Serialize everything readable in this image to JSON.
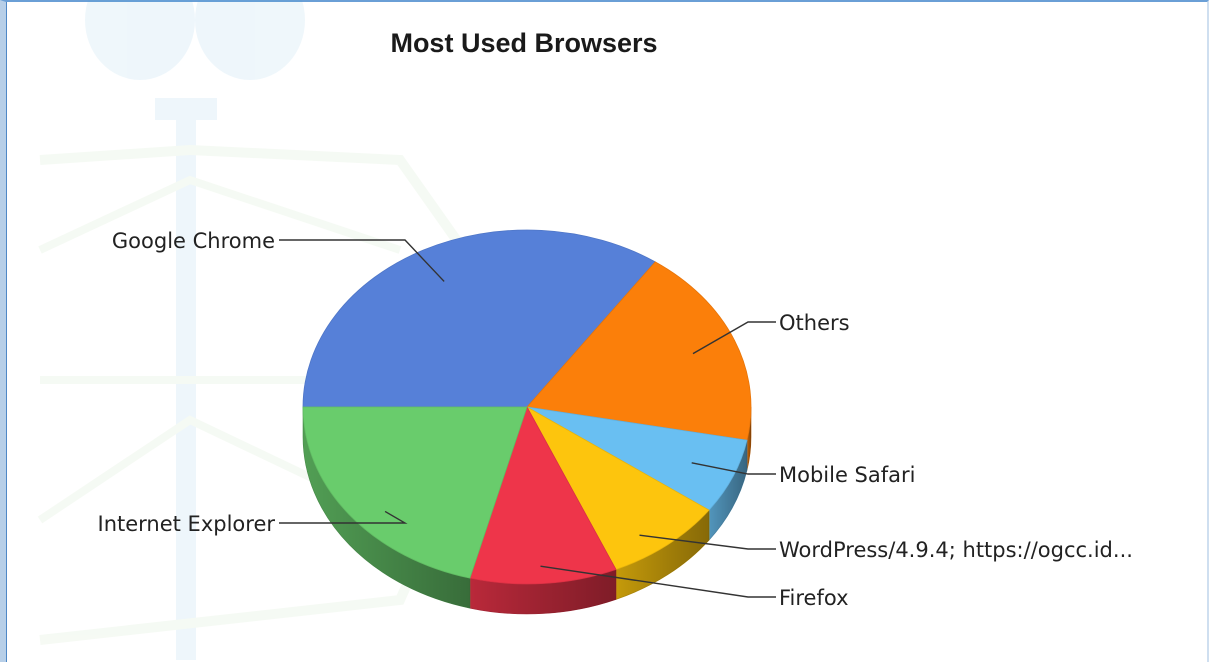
{
  "chart_data": {
    "type": "pie",
    "style": "3d",
    "title": "Most Used Browsers",
    "legend": "none (leader-line labels)",
    "slices": [
      {
        "label": "Google Chrome",
        "value": 34.7,
        "color": "#5680d8"
      },
      {
        "label": "Others",
        "value": 18.3,
        "color": "#fb7f0a"
      },
      {
        "label": "Mobile Safari",
        "value": 6.9,
        "color": "#69bff2"
      },
      {
        "label": "WordPress/4.9.4; https://ogcc.id...",
        "value": 8.6,
        "color": "#fdc50d"
      },
      {
        "label": "Firefox",
        "value": 10.6,
        "color": "#ee354a"
      },
      {
        "label": "Internet Explorer",
        "value": 20.9,
        "color": "#69cc6c"
      }
    ]
  }
}
